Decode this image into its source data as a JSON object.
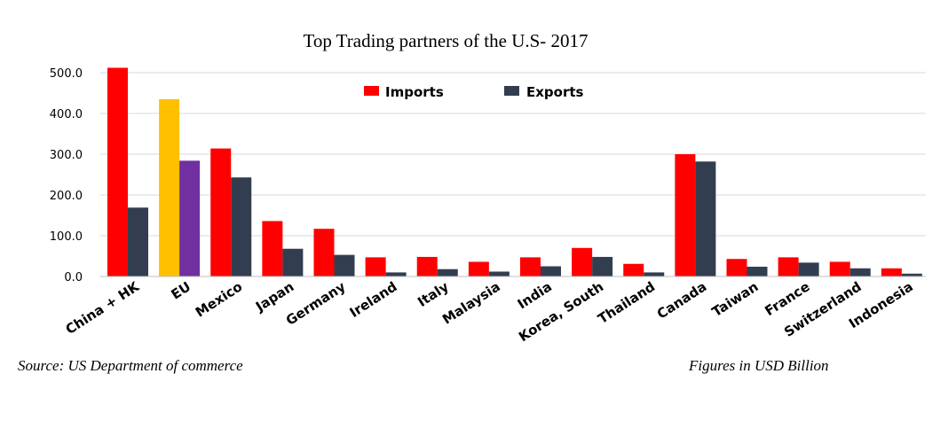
{
  "chart_data": {
    "type": "bar",
    "title": "Top Trading partners of the U.S- 2017",
    "xlabel": "",
    "ylabel": "",
    "ylim": [
      0,
      500
    ],
    "yticks": [
      "0.0",
      "100.0",
      "200.0",
      "300.0",
      "400.0",
      "500.0"
    ],
    "grid": true,
    "legend_position": "top",
    "categories": [
      "China + HK",
      "EU",
      "Mexico",
      "Japan",
      "Germany",
      "Ireland",
      "Italy",
      "Malaysia",
      "India",
      "Korea, South",
      "Thailand",
      "Canada",
      "Taiwan",
      "France",
      "Switzerland",
      "Indonesia"
    ],
    "series": [
      {
        "name": "Imports",
        "color": "#ff0000",
        "values": [
          512,
          435,
          314,
          136,
          117,
          47,
          48,
          36,
          47,
          70,
          31,
          300,
          43,
          47,
          36,
          20
        ],
        "highlight": {
          "1": "#ffc000"
        }
      },
      {
        "name": "Exports",
        "color": "#323e4f",
        "values": [
          169,
          284,
          243,
          68,
          53,
          10,
          18,
          12,
          25,
          48,
          10,
          282,
          24,
          34,
          20,
          7
        ],
        "highlight": {
          "1": "#7030a0"
        }
      }
    ],
    "source_note": "Source: US Department of commerce",
    "units_note": "Figures in USD Billion"
  }
}
